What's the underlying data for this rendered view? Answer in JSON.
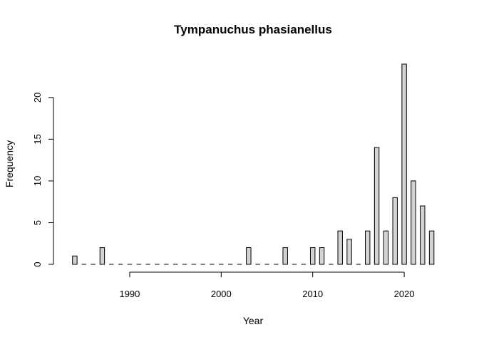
{
  "chart_data": {
    "type": "bar",
    "title": "Tympanuchus phasianellus",
    "xlabel": "Year",
    "ylabel": "Frequency",
    "x_ticks": [
      1990,
      2000,
      2010,
      2020
    ],
    "y_ticks": [
      0,
      5,
      10,
      15,
      20
    ],
    "xlim": [
      1983.5,
      2023.5
    ],
    "ylim": [
      0,
      24
    ],
    "bin_width": 1,
    "bar_color": "#d3d3d3",
    "grid": false,
    "years": [
      1984,
      1985,
      1986,
      1987,
      1988,
      1989,
      1990,
      1991,
      1992,
      1993,
      1994,
      1995,
      1996,
      1997,
      1998,
      1999,
      2000,
      2001,
      2002,
      2003,
      2004,
      2005,
      2006,
      2007,
      2008,
      2009,
      2010,
      2011,
      2012,
      2013,
      2014,
      2015,
      2016,
      2017,
      2018,
      2019,
      2020,
      2021,
      2022,
      2023
    ],
    "values": [
      1,
      0,
      0,
      2,
      0,
      0,
      0,
      0,
      0,
      0,
      0,
      0,
      0,
      0,
      0,
      0,
      0,
      0,
      0,
      2,
      0,
      0,
      0,
      2,
      0,
      0,
      2,
      2,
      0,
      4,
      3,
      0,
      4,
      14,
      4,
      8,
      24,
      10,
      7,
      4
    ]
  }
}
